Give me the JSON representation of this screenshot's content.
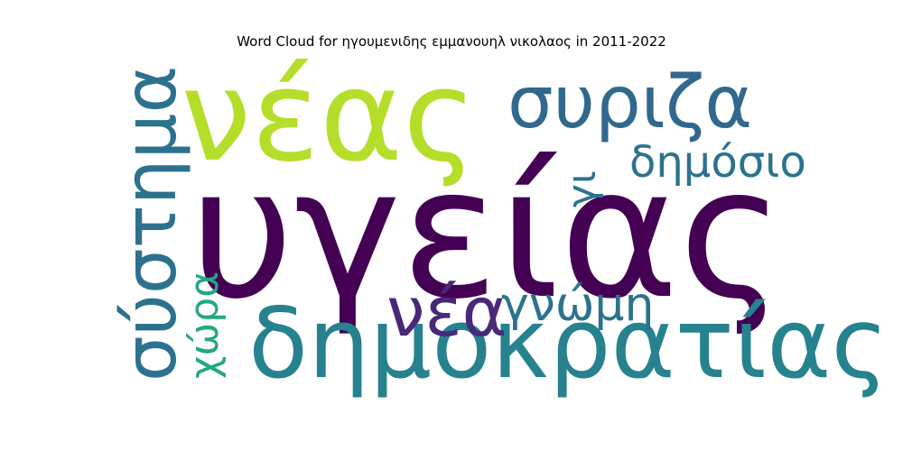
{
  "chart_data": {
    "type": "wordcloud",
    "title": "Word Cloud for ηγουμενιδης εμμανουηλ νικολαος in 2011-2022",
    "words": [
      {
        "text": "υγείας",
        "color": "#440154",
        "orientation": "horizontal",
        "size_rank": 1
      },
      {
        "text": "νέας",
        "color": "#b5de2b",
        "orientation": "horizontal",
        "size_rank": 2
      },
      {
        "text": "δημοκρατίας",
        "color": "#26828e",
        "orientation": "horizontal",
        "size_rank": 3
      },
      {
        "text": "συριζα",
        "color": "#31688e",
        "orientation": "horizontal",
        "size_rank": 4
      },
      {
        "text": "σύστημα",
        "color": "#2c728e",
        "orientation": "vertical",
        "size_rank": 5
      },
      {
        "text": "νέα",
        "color": "#482878",
        "orientation": "horizontal",
        "size_rank": 6
      },
      {
        "text": "δημόσιο",
        "color": "#2c728e",
        "orientation": "horizontal",
        "size_rank": 7
      },
      {
        "text": "γνώμη",
        "color": "#2c728e",
        "orientation": "horizontal",
        "size_rank": 8
      },
      {
        "text": "χώρα",
        "color": "#22a884",
        "orientation": "vertical",
        "size_rank": 9
      },
      {
        "text": "γι",
        "color": "#2c728e",
        "orientation": "vertical",
        "size_rank": 10
      }
    ]
  }
}
